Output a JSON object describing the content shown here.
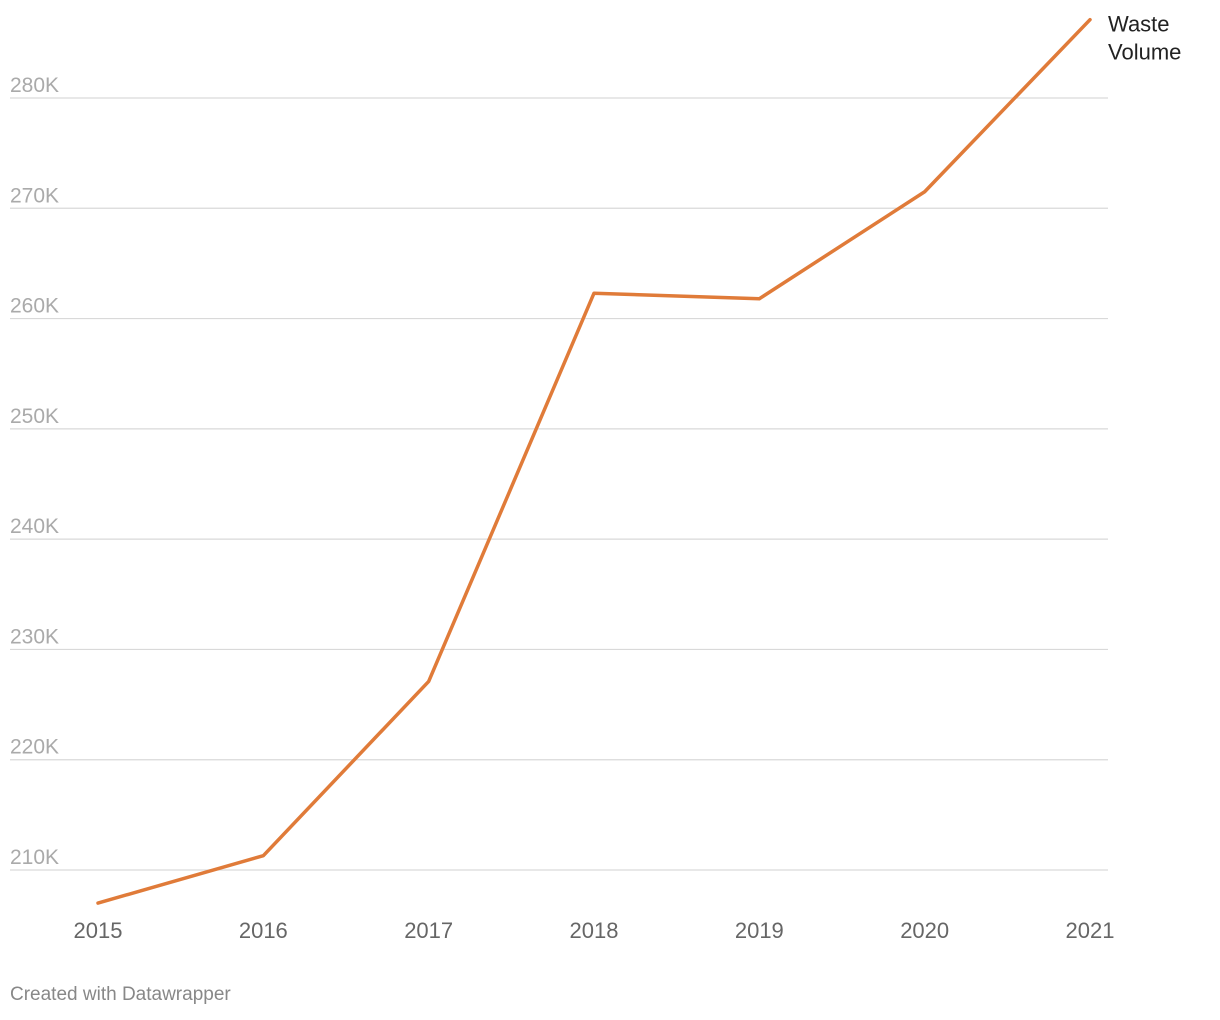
{
  "footer": {
    "credit": "Created with Datawrapper"
  },
  "colors": {
    "series": "#e07b39",
    "grid": "#d9d9d9",
    "y_tick": "#aaaaaa",
    "x_tick": "#666666"
  },
  "chart_data": {
    "type": "line",
    "title": "",
    "xlabel": "",
    "ylabel": "",
    "x": [
      "2015",
      "2016",
      "2017",
      "2018",
      "2019",
      "2020",
      "2021"
    ],
    "series": [
      {
        "name": "Waste Volume",
        "label_lines": [
          "Waste",
          "Volume"
        ],
        "values": [
          207000,
          211300,
          227100,
          262300,
          261800,
          271500,
          287100
        ]
      }
    ],
    "y_ticks": [
      210000,
      220000,
      230000,
      240000,
      250000,
      260000,
      270000,
      280000
    ],
    "y_tick_labels": [
      "210K",
      "220K",
      "230K",
      "240K",
      "250K",
      "260K",
      "270K",
      "280K"
    ],
    "ylim": [
      206000,
      287700
    ],
    "grid": true,
    "legend": "direct label at line end"
  }
}
